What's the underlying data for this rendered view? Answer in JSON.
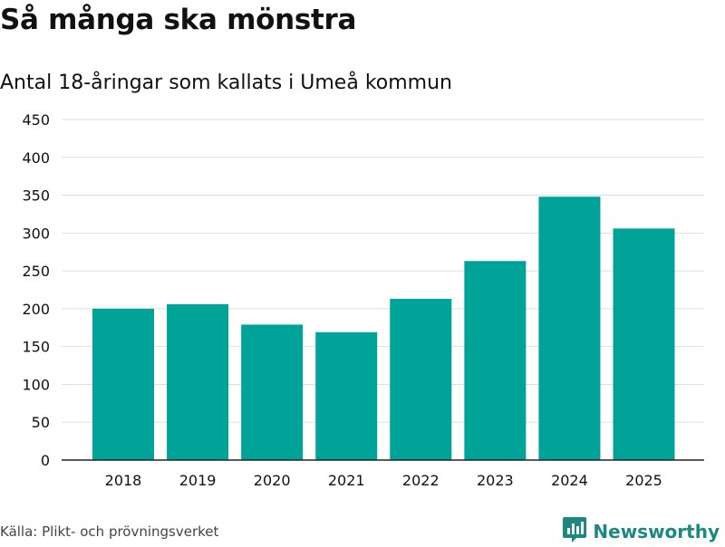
{
  "colors": {
    "bar": "#00a398",
    "grid": "#dddddd",
    "axis": "#222222",
    "text": "#111111",
    "brand": "#1a8a80"
  },
  "chart_data": {
    "type": "bar",
    "title": "Så många ska mönstra",
    "subtitle": "Antal 18-åringar som kallats i Umeå kommun",
    "categories": [
      "2018",
      "2019",
      "2020",
      "2021",
      "2022",
      "2023",
      "2024",
      "2025"
    ],
    "values": [
      200,
      206,
      179,
      169,
      213,
      263,
      348,
      306
    ],
    "xlabel": "",
    "ylabel": "",
    "ylim": [
      0,
      450
    ],
    "yticks": [
      0,
      50,
      100,
      150,
      200,
      250,
      300,
      350,
      400,
      450
    ],
    "grid": true,
    "legend": "none"
  },
  "footer": {
    "source": "Källa: Plikt- och prövningsverket",
    "brand": "Newsworthy",
    "brand_icon": "bar-chart-icon"
  }
}
